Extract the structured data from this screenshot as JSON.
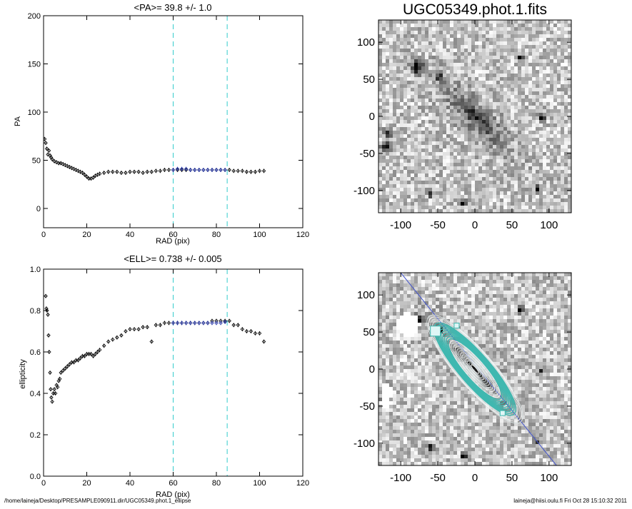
{
  "footer": {
    "left": "/home/laineja/Desktop/PRESAMPLE090911.dir/UGC05349.phot.1_ellipse",
    "right": "laineja@hiisi.oulu.fi  Fri Oct 28 15:10:32 2011"
  },
  "colors": {
    "points": "#000000",
    "fit_points": "#2233aa",
    "vline": "#33cccc",
    "contour": "#3fb8b0",
    "major_axis": "#4455cc"
  },
  "chart_data": [
    {
      "type": "scatter",
      "title": "<PA>=  39.8 +/-   1.0",
      "xlabel": "RAD (pix)",
      "ylabel": "PA",
      "xlim": [
        0,
        120
      ],
      "ylim": [
        -20,
        200
      ],
      "xticks": [
        0,
        20,
        40,
        60,
        80,
        100,
        120
      ],
      "yticks": [
        0,
        50,
        100,
        150,
        200
      ],
      "vlines": [
        60,
        85
      ],
      "series": [
        {
          "role": "all",
          "x": [
            0.5,
            1,
            1.5,
            2,
            2.5,
            3,
            3.5,
            4,
            5,
            6,
            7,
            8,
            9,
            10,
            11,
            12,
            13,
            14,
            15,
            16,
            17,
            18,
            19,
            20,
            21,
            22,
            23,
            24,
            25,
            26,
            28,
            30,
            32,
            34,
            36,
            38,
            40,
            42,
            44,
            46,
            48,
            50,
            52,
            54,
            56,
            58,
            60,
            62,
            64,
            66,
            68,
            70,
            72,
            74,
            76,
            78,
            80,
            82,
            84,
            86,
            88,
            90,
            92,
            94,
            96,
            98,
            100,
            102
          ],
          "y": [
            72,
            68,
            62,
            56,
            60,
            55,
            53,
            51,
            49,
            48,
            47,
            47,
            46,
            45,
            44,
            43,
            42,
            41,
            40,
            39,
            38,
            37,
            35,
            33,
            31,
            31,
            32,
            34,
            35,
            36,
            37,
            38,
            38,
            38,
            37,
            37,
            38,
            38,
            38,
            37,
            38,
            38,
            39,
            39,
            40,
            40,
            40,
            40,
            40,
            40,
            40,
            40,
            40,
            40,
            40,
            40,
            40,
            40,
            40,
            40,
            39,
            39,
            39,
            38,
            38,
            38,
            39,
            39
          ]
        },
        {
          "role": "fit",
          "x": [
            60,
            62,
            64,
            66,
            68,
            70,
            72,
            74,
            76,
            78,
            80,
            82,
            84
          ],
          "y": [
            40,
            41,
            41,
            41,
            40,
            40,
            40,
            40,
            40,
            40,
            40,
            40,
            40
          ]
        }
      ]
    },
    {
      "type": "scatter",
      "title": "<ELL>= 0.738 +/-  0.005",
      "xlabel": "RAD (pix)",
      "ylabel": "ellipticity",
      "xlim": [
        0,
        120
      ],
      "ylim": [
        0,
        1
      ],
      "xticks": [
        0,
        20,
        40,
        60,
        80,
        100,
        120
      ],
      "yticks": [
        "0.0",
        "0.2",
        "0.4",
        "0.6",
        "0.8",
        "1.0"
      ],
      "vlines": [
        60,
        85
      ],
      "series": [
        {
          "role": "all",
          "x": [
            1,
            1.3,
            1.6,
            2,
            2.3,
            2.6,
            3,
            3.3,
            3.6,
            4,
            4.5,
            5,
            5.5,
            6,
            6.5,
            7,
            7.5,
            8,
            9,
            10,
            11,
            12,
            13,
            14,
            15,
            16,
            17,
            18,
            19,
            20,
            21,
            22,
            23,
            24,
            25,
            26,
            28,
            30,
            32,
            34,
            36,
            38,
            40,
            42,
            44,
            46,
            48,
            50,
            52,
            54,
            56,
            58,
            60,
            62,
            64,
            66,
            68,
            70,
            72,
            74,
            76,
            78,
            80,
            82,
            84,
            86,
            88,
            90,
            92,
            94,
            96,
            98,
            100,
            102
          ],
          "y": [
            0.87,
            0.81,
            0.8,
            0.78,
            0.68,
            0.6,
            0.5,
            0.42,
            0.38,
            0.36,
            0.4,
            0.42,
            0.4,
            0.44,
            0.43,
            0.46,
            0.47,
            0.5,
            0.51,
            0.52,
            0.53,
            0.54,
            0.55,
            0.55,
            0.56,
            0.56,
            0.57,
            0.58,
            0.58,
            0.59,
            0.59,
            0.59,
            0.58,
            0.59,
            0.6,
            0.61,
            0.63,
            0.65,
            0.66,
            0.67,
            0.68,
            0.7,
            0.71,
            0.71,
            0.71,
            0.72,
            0.72,
            0.65,
            0.73,
            0.73,
            0.74,
            0.74,
            0.74,
            0.74,
            0.74,
            0.74,
            0.74,
            0.74,
            0.74,
            0.74,
            0.74,
            0.75,
            0.75,
            0.75,
            0.75,
            0.75,
            0.73,
            0.73,
            0.71,
            0.7,
            0.7,
            0.69,
            0.69,
            0.65
          ]
        },
        {
          "role": "fit",
          "x": [
            60,
            62,
            64,
            66,
            68,
            70,
            72,
            74,
            76,
            78,
            80,
            82,
            84
          ],
          "y": [
            0.74,
            0.74,
            0.74,
            0.74,
            0.74,
            0.74,
            0.74,
            0.74,
            0.74,
            0.74,
            0.74,
            0.74,
            0.745
          ]
        }
      ]
    },
    {
      "type": "heatmap",
      "title": "UGC05349.phot.1.fits",
      "xlim": [
        -130,
        130
      ],
      "ylim": [
        -130,
        130
      ],
      "xticks": [
        -100,
        -50,
        0,
        50,
        100
      ],
      "yticks": [
        -100,
        -50,
        0,
        50,
        100
      ]
    },
    {
      "type": "heatmap",
      "title": "",
      "xlim": [
        -130,
        130
      ],
      "ylim": [
        -130,
        130
      ],
      "xticks": [
        -100,
        -50,
        0,
        50,
        100
      ],
      "yticks": [
        -100,
        -50,
        0,
        50,
        100
      ]
    }
  ]
}
